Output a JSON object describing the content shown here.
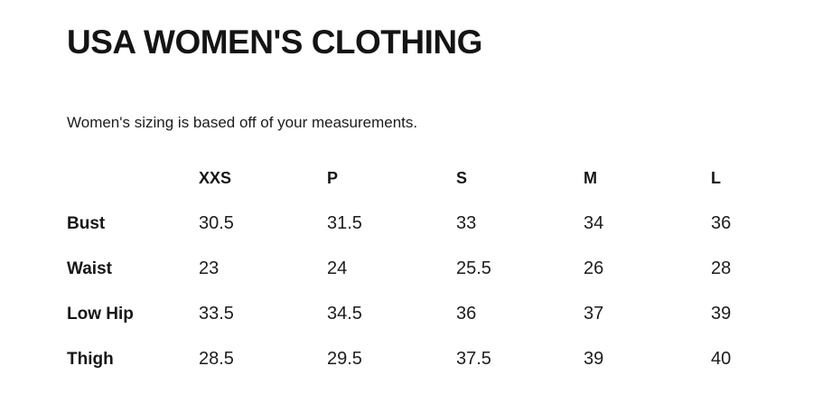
{
  "page": {
    "title": "USA WOMEN'S CLOTHING",
    "intro": "Women's sizing is based off of your measurements."
  },
  "size_chart": {
    "columns": [
      "XXS",
      "P",
      "S",
      "M",
      "L"
    ],
    "rows": [
      {
        "label": "Bust",
        "values": [
          "30.5",
          "31.5",
          "33",
          "34",
          "36"
        ]
      },
      {
        "label": "Waist",
        "values": [
          "23",
          "24",
          "25.5",
          "26",
          "28"
        ]
      },
      {
        "label": "Low Hip",
        "values": [
          "33.5",
          "34.5",
          "36",
          "37",
          "39"
        ]
      },
      {
        "label": "Thigh",
        "values": [
          "28.5",
          "29.5",
          "37.5",
          "39",
          "40"
        ]
      }
    ]
  },
  "colors": {
    "text": "#1c1c1c",
    "background": "#ffffff"
  }
}
